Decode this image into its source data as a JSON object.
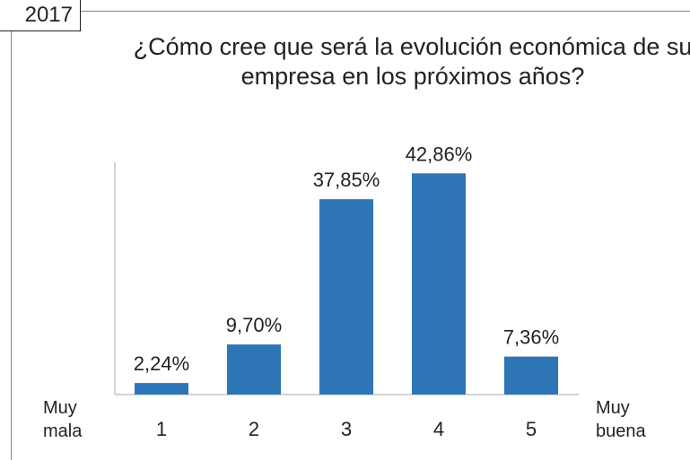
{
  "chart_data": {
    "type": "bar",
    "tag": "2017",
    "title": "¿Cómo cree que será la evolución económica de su empresa en los próximos años?",
    "categories": [
      "1",
      "2",
      "3",
      "4",
      "5"
    ],
    "values": [
      2.24,
      9.7,
      37.85,
      42.86,
      7.36
    ],
    "value_labels": [
      "2,24%",
      "9,70%",
      "37,85%",
      "42,86%",
      "7,36%"
    ],
    "annotations": [
      "Muy mala",
      "Muy buena"
    ],
    "color": "#2e75b6",
    "ylim": [
      0,
      45
    ]
  }
}
